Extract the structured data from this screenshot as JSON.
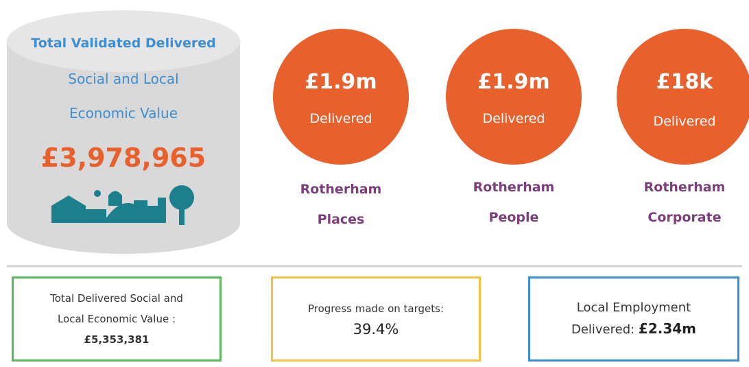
{
  "cylinder": {
    "lines": [
      "Total Validated Delivered",
      "Social and Local",
      "Economic Value"
    ],
    "value": "£3,978,965"
  },
  "circles": [
    {
      "value": "£1.9m",
      "label": "Delivered",
      "name": [
        "Rotherham",
        "Places"
      ]
    },
    {
      "value": "£1.9m",
      "label": "Delivered",
      "name": [
        "Rotherham",
        "People"
      ]
    },
    {
      "value": "£18k",
      "label": "Delivered",
      "name": [
        "Rotherham",
        "Corporate"
      ]
    }
  ],
  "boxes": [
    {
      "lines": [
        "Total Delivered Social and",
        "Local Economic Value :"
      ],
      "value": "£5,353,381"
    },
    {
      "lines": [
        "Progress made on targets:"
      ],
      "value": "39.4%"
    },
    {
      "lines": [
        "Local Employment",
        "Delivered:"
      ],
      "value": "£2.34m"
    }
  ]
}
